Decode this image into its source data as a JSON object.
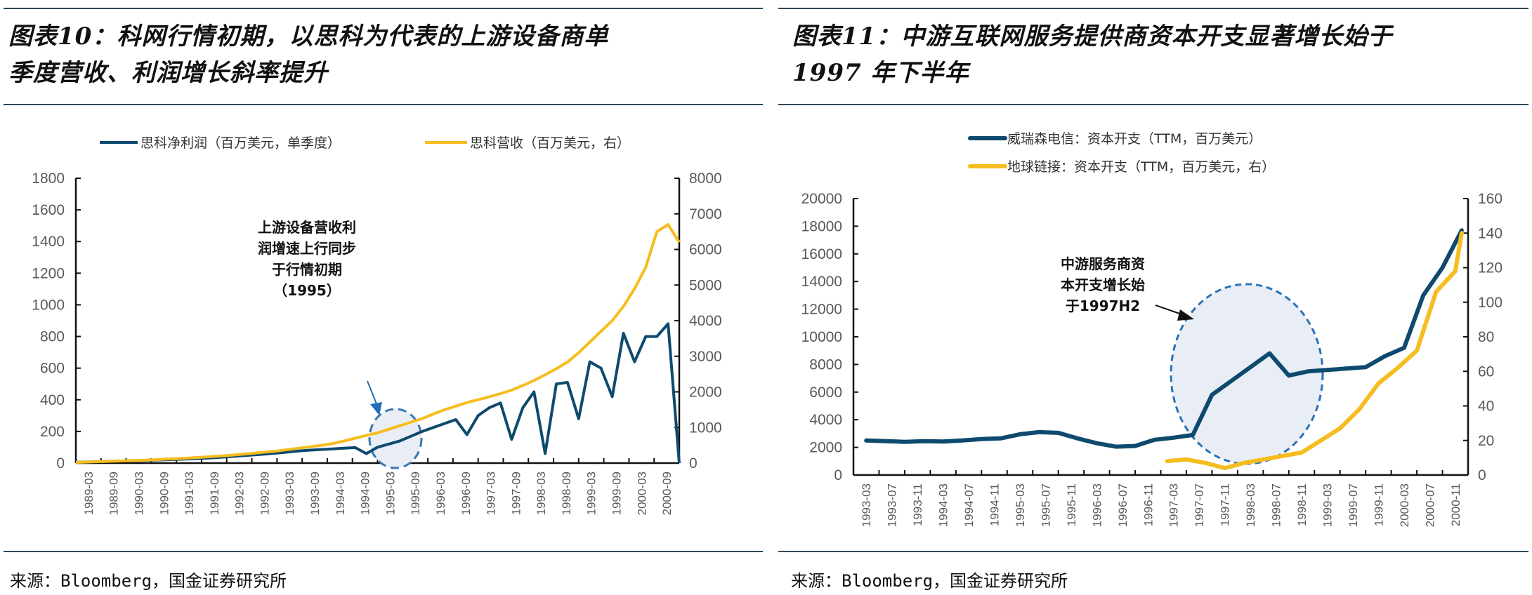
{
  "left": {
    "title_line1": "图表10：科网行情初期，以思科为代表的上游设备商单",
    "title_line2": "季度营收、利润增长斜率提升",
    "source": "来源：Bloomberg，国金证券研究所"
  },
  "right": {
    "title_line1": "图表11：中游互联网服务提供商资本开支显著增长始于",
    "title_line2": "1997 年下半年",
    "source": "来源：Bloomberg，国金证券研究所"
  },
  "colors": {
    "navy": "#0e4a6e",
    "gold": "#f5bd1f",
    "rule": "#2c4a57",
    "ellipse_fill": "#e9eef6",
    "ellipse_stroke": "#2a72b5",
    "arrow": "#1f6fb8"
  },
  "chart_data": [
    {
      "type": "line",
      "title": "科网行情初期，以思科为代表的上游设备商单季度营收、利润增长斜率提升",
      "legend_position": "top-center",
      "x_tick_labels": [
        "1989-03",
        "1989-09",
        "1990-03",
        "1990-09",
        "1991-03",
        "1991-09",
        "1992-03",
        "1992-09",
        "1993-03",
        "1993-09",
        "1994-03",
        "1994-09",
        "1995-03",
        "1995-09",
        "1996-03",
        "1996-09",
        "1997-03",
        "1997-09",
        "1998-03",
        "1998-09",
        "1999-03",
        "1999-09",
        "2000-03",
        "2000-09"
      ],
      "y_left": {
        "range": [
          0,
          1800
        ],
        "ticks": [
          0,
          200,
          400,
          600,
          800,
          1000,
          1200,
          1400,
          1600,
          1800
        ]
      },
      "y_right": {
        "range": [
          0,
          8000
        ],
        "ticks": [
          0,
          1000,
          2000,
          3000,
          4000,
          5000,
          6000,
          7000,
          8000
        ]
      },
      "series": [
        {
          "name": "思科净利润（百万美元，单季度）",
          "axis": "left",
          "color": "#0e4a6e",
          "values": [
            5,
            7,
            9,
            11,
            13,
            15,
            17,
            19,
            21,
            23,
            26,
            29,
            33,
            37,
            42,
            47,
            52,
            57,
            63,
            70,
            77,
            82,
            86,
            90,
            94,
            98,
            60,
            100,
            120,
            140,
            170,
            200,
            225,
            250,
            275,
            180,
            300,
            350,
            380,
            150,
            350,
            450,
            60,
            500,
            510,
            280,
            640,
            600,
            420,
            820,
            640,
            800,
            800,
            880,
            0
          ]
        },
        {
          "name": "思科营收（百万美元，右）",
          "axis": "right",
          "color": "#f5bd1f",
          "values": [
            20,
            30,
            40,
            50,
            60,
            70,
            80,
            95,
            110,
            125,
            140,
            160,
            180,
            200,
            225,
            250,
            280,
            310,
            340,
            380,
            420,
            460,
            500,
            550,
            620,
            700,
            780,
            850,
            950,
            1050,
            1150,
            1250,
            1380,
            1500,
            1600,
            1700,
            1780,
            1860,
            1950,
            2050,
            2180,
            2320,
            2480,
            2650,
            2840,
            3100,
            3400,
            3700,
            4000,
            4400,
            4900,
            5500,
            6500,
            6700,
            6200
          ]
        }
      ],
      "annotation": {
        "lines": [
          "上游设备营收利",
          "润增速上行同步",
          "于行情初期",
          "（1995）"
        ]
      }
    },
    {
      "type": "line",
      "title": "中游互联网服务提供商资本开支显著增长始于1997年下半年",
      "legend_position": "top-center",
      "x_tick_labels": [
        "1993-03",
        "1993-07",
        "1993-11",
        "1994-03",
        "1994-07",
        "1994-11",
        "1995-03",
        "1995-07",
        "1995-11",
        "1996-03",
        "1996-07",
        "1996-11",
        "1997-03",
        "1997-07",
        "1997-11",
        "1998-03",
        "1998-07",
        "1998-11",
        "1999-03",
        "1999-07",
        "1999-11",
        "2000-03",
        "2000-07",
        "2000-11"
      ],
      "y_left": {
        "range": [
          0,
          20000
        ],
        "ticks": [
          0,
          2000,
          4000,
          6000,
          8000,
          10000,
          12000,
          14000,
          16000,
          18000,
          20000
        ]
      },
      "y_right": {
        "range": [
          0,
          160
        ],
        "ticks": [
          0,
          20,
          40,
          60,
          80,
          100,
          120,
          140,
          160
        ]
      },
      "series": [
        {
          "name": "威瑞森电信：资本开支（TTM，百万美元）",
          "axis": "left",
          "color": "#0e4a6e",
          "x_index": [
            0,
            0.75,
            1.5,
            2.25,
            3,
            3.75,
            4.5,
            5.25,
            6,
            6.75,
            7.5,
            8.25,
            9,
            9.75,
            10.5,
            11.25,
            12,
            12.75,
            13.5,
            14.25,
            15,
            15.75,
            16.5,
            17.25,
            18,
            18.75,
            19.5,
            20.25,
            21,
            21.75,
            22.5,
            23.25
          ],
          "values": [
            2500,
            2450,
            2400,
            2450,
            2420,
            2500,
            2600,
            2650,
            2950,
            3100,
            3050,
            2650,
            2300,
            2050,
            2100,
            2550,
            2700,
            2900,
            5800,
            6800,
            7800,
            8800,
            7200,
            7500,
            7600,
            7700,
            7800,
            8600,
            9200,
            13000,
            15000,
            17700
          ]
        },
        {
          "name": "地球链接：资本开支（TTM，百万美元，右）",
          "axis": "right",
          "color": "#f5bd1f",
          "x_index": [
            11.75,
            12.5,
            13.25,
            14,
            14.75,
            15.5,
            16.25,
            17,
            17.75,
            18.5,
            19.25,
            20,
            20.75,
            21.5,
            22.25,
            23,
            23.25
          ],
          "values": [
            8,
            9,
            7,
            4,
            7,
            9,
            11,
            13,
            20,
            27,
            38,
            53,
            62,
            72,
            106,
            118,
            140
          ]
        }
      ],
      "annotation": {
        "lines": [
          "中游服务商资",
          "本开支增长始",
          "于1997H2"
        ]
      }
    }
  ]
}
